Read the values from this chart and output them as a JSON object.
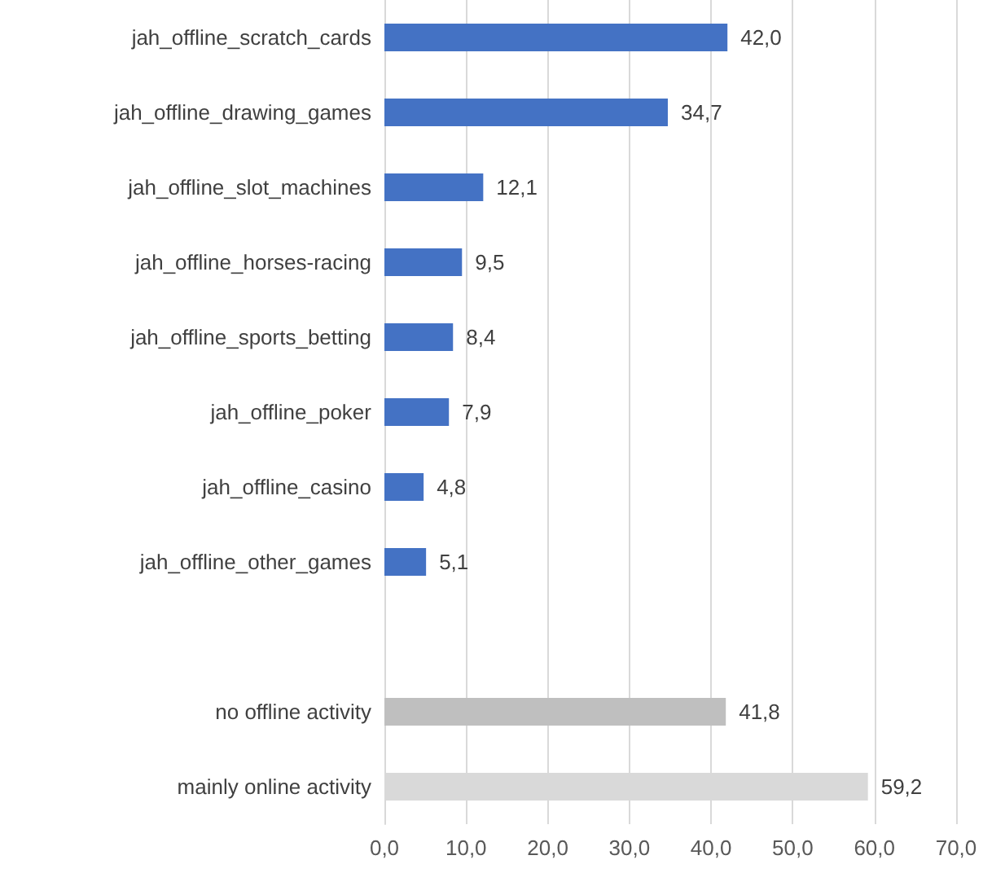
{
  "chart_data": {
    "type": "bar",
    "orientation": "horizontal",
    "categories": [
      "jah_offline_scratch_cards",
      "jah_offline_drawing_games",
      "jah_offline_slot_machines",
      "jah_offline_horses-racing",
      "jah_offline_sports_betting",
      "jah_offline_poker",
      "jah_offline_casino",
      "jah_offline_other_games",
      null,
      "no offline activity",
      "mainly online activity"
    ],
    "values": [
      42.0,
      34.7,
      12.1,
      9.5,
      8.4,
      7.9,
      4.8,
      5.1,
      null,
      41.8,
      59.2
    ],
    "value_labels": [
      "42,0",
      "34,7",
      "12,1",
      "9,5",
      "8,4",
      "7,9",
      "4,8",
      "5,1",
      null,
      "41,8",
      "59,2"
    ],
    "colors": [
      "#4472c4",
      "#4472c4",
      "#4472c4",
      "#4472c4",
      "#4472c4",
      "#4472c4",
      "#4472c4",
      "#4472c4",
      null,
      "#bfbfbf",
      "#d9d9d9"
    ],
    "xlim": [
      0,
      70
    ],
    "xticks": [
      {
        "value": 0,
        "label": "0,0"
      },
      {
        "value": 10,
        "label": "10,0"
      },
      {
        "value": 20,
        "label": "20,0"
      },
      {
        "value": 30,
        "label": "30,0"
      },
      {
        "value": 40,
        "label": "40,0"
      },
      {
        "value": 50,
        "label": "50,0"
      },
      {
        "value": 60,
        "label": "60,0"
      },
      {
        "value": 70,
        "label": "70,0"
      }
    ],
    "grid": "x"
  }
}
